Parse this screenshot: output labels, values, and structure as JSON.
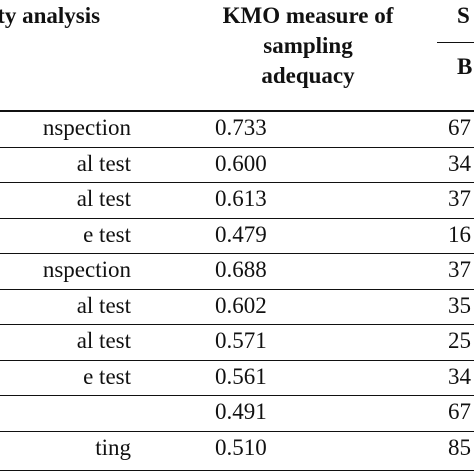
{
  "table": {
    "headers": {
      "validity": "dity analysis",
      "kmo": [
        "KMO measure of",
        "sampling",
        "adequacy"
      ],
      "s_group": "S",
      "s_sub": "B"
    },
    "rows": [
      {
        "name": "nspection",
        "kmo": "0.733",
        "s": "67"
      },
      {
        "name": "al test",
        "kmo": "0.600",
        "s": "34"
      },
      {
        "name": "al test",
        "kmo": "0.613",
        "s": "37"
      },
      {
        "name": "e test",
        "kmo": "0.479",
        "s": "16"
      },
      {
        "name": "nspection",
        "kmo": "0.688",
        "s": "37"
      },
      {
        "name": "al test",
        "kmo": "0.602",
        "s": "35"
      },
      {
        "name": "al test",
        "kmo": "0.571",
        "s": "25"
      },
      {
        "name": "e test",
        "kmo": "0.561",
        "s": "34"
      },
      {
        "name": "",
        "kmo": "0.491",
        "s": "67"
      },
      {
        "name": "ting",
        "kmo": "0.510",
        "s": "85"
      }
    ]
  }
}
